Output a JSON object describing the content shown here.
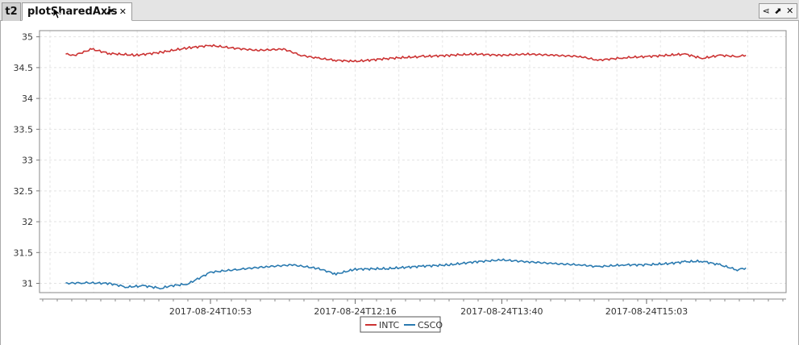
{
  "tabs": [
    {
      "label": "t2",
      "active": false
    },
    {
      "label": "plotSharedAxis",
      "active": true
    }
  ],
  "tab_icons": [
    "pop-out-icon",
    "close-icon"
  ],
  "window_controls": [
    "share-icon",
    "pop-out-icon",
    "close-icon"
  ],
  "chart_data": {
    "type": "line",
    "title": "",
    "xlabel": "",
    "ylabel": "",
    "ylim": [
      30.85,
      35.1
    ],
    "y_ticks": [
      31,
      31.5,
      32,
      32.5,
      33,
      33.5,
      34,
      34.5,
      35
    ],
    "x_tick_labels": [
      "2017-08-24T10:53",
      "2017-08-24T12:16",
      "2017-08-24T13:40",
      "2017-08-24T15:03"
    ],
    "grid": true,
    "legend_position": "bottom-center",
    "series": [
      {
        "name": "INTC",
        "color": "#cc3333",
        "x": [
          "2017-08-24T09:30",
          "2017-08-24T09:35",
          "2017-08-24T09:45",
          "2017-08-24T09:55",
          "2017-08-24T10:10",
          "2017-08-24T10:25",
          "2017-08-24T10:40",
          "2017-08-24T10:53",
          "2017-08-24T11:05",
          "2017-08-24T11:20",
          "2017-08-24T11:35",
          "2017-08-24T11:45",
          "2017-08-24T11:55",
          "2017-08-24T12:05",
          "2017-08-24T12:16",
          "2017-08-24T12:35",
          "2017-08-24T12:55",
          "2017-08-24T13:10",
          "2017-08-24T13:25",
          "2017-08-24T13:40",
          "2017-08-24T13:55",
          "2017-08-24T14:10",
          "2017-08-24T14:25",
          "2017-08-24T14:35",
          "2017-08-24T14:50",
          "2017-08-24T15:03",
          "2017-08-24T15:15",
          "2017-08-24T15:25",
          "2017-08-24T15:35",
          "2017-08-24T15:45",
          "2017-08-24T15:55",
          "2017-08-24T16:00"
        ],
        "values": [
          34.72,
          34.7,
          34.8,
          34.73,
          34.7,
          34.75,
          34.82,
          34.86,
          34.82,
          34.78,
          34.8,
          34.7,
          34.65,
          34.62,
          34.6,
          34.65,
          34.68,
          34.7,
          34.72,
          34.7,
          34.72,
          34.7,
          34.68,
          34.62,
          34.66,
          34.68,
          34.7,
          34.72,
          34.65,
          34.7,
          34.68,
          34.7
        ]
      },
      {
        "name": "CSCO",
        "color": "#2a7ab0",
        "x": [
          "2017-08-24T09:30",
          "2017-08-24T09:40",
          "2017-08-24T09:55",
          "2017-08-24T10:05",
          "2017-08-24T10:15",
          "2017-08-24T10:25",
          "2017-08-24T10:30",
          "2017-08-24T10:40",
          "2017-08-24T10:53",
          "2017-08-24T11:10",
          "2017-08-24T11:25",
          "2017-08-24T11:40",
          "2017-08-24T11:55",
          "2017-08-24T12:05",
          "2017-08-24T12:16",
          "2017-08-24T12:35",
          "2017-08-24T12:55",
          "2017-08-24T13:10",
          "2017-08-24T13:25",
          "2017-08-24T13:40",
          "2017-08-24T13:55",
          "2017-08-24T14:10",
          "2017-08-24T14:25",
          "2017-08-24T14:35",
          "2017-08-24T14:50",
          "2017-08-24T15:03",
          "2017-08-24T15:15",
          "2017-08-24T15:25",
          "2017-08-24T15:35",
          "2017-08-24T15:45",
          "2017-08-24T15:55",
          "2017-08-24T16:00"
        ],
        "values": [
          31.0,
          31.01,
          31.0,
          30.94,
          30.96,
          30.92,
          30.96,
          30.99,
          31.18,
          31.23,
          31.27,
          31.3,
          31.24,
          31.15,
          31.23,
          31.24,
          31.28,
          31.3,
          31.35,
          31.38,
          31.35,
          31.32,
          31.3,
          31.27,
          31.3,
          31.3,
          31.32,
          31.35,
          31.36,
          31.3,
          31.22,
          31.25
        ]
      }
    ]
  }
}
